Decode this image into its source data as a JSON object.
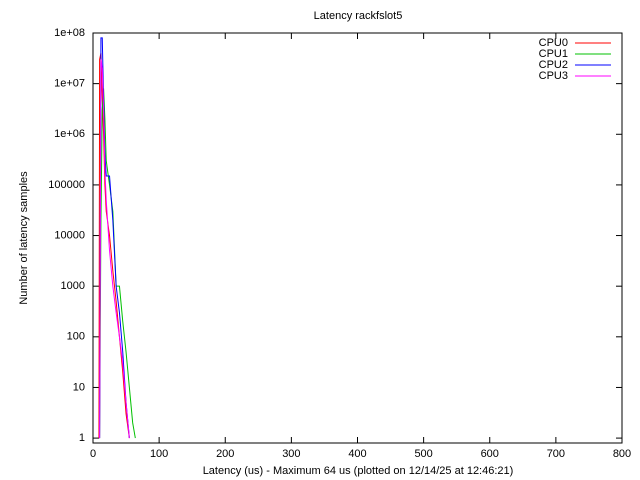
{
  "chart_data": {
    "type": "line",
    "title": "Latency rackfslot5",
    "x_label": "Latency (us) - Maximum 64 us (plotted on 12/14/25 at 12:46:21)",
    "y_label": "Number of latency samples",
    "x": [
      9,
      10,
      12,
      14,
      16,
      18,
      20,
      25,
      30,
      35,
      40,
      45,
      50,
      55,
      60,
      64
    ],
    "series": [
      {
        "name": "CPU0",
        "color": "#ff0000",
        "values": [
          1,
          30000000,
          40000000,
          5000000,
          1000000,
          100000,
          30000,
          10000,
          2000,
          500,
          100,
          20,
          3,
          1,
          null,
          null
        ]
      },
      {
        "name": "CPU1",
        "color": "#00c000",
        "values": [
          null,
          1,
          20000,
          3000000,
          8000000,
          2000000,
          300000,
          100000,
          30000,
          1000,
          1000,
          200,
          50,
          10,
          2,
          1
        ]
      },
      {
        "name": "CPU2",
        "color": "#0000ff",
        "values": [
          null,
          1,
          80000000,
          80000000,
          5000000,
          400000,
          150000,
          150000,
          20000,
          1000,
          300,
          50,
          5,
          1,
          null,
          null
        ]
      },
      {
        "name": "CPU3",
        "color": "#ff00ff",
        "values": [
          null,
          1,
          30000000,
          20000000,
          3000000,
          200000,
          50000,
          5000,
          1000,
          300,
          100,
          30,
          5,
          1,
          null,
          null
        ]
      }
    ],
    "xlim": [
      0,
      800
    ],
    "xticks": [
      0,
      100,
      200,
      300,
      400,
      500,
      600,
      700,
      800
    ],
    "ylim": [
      0.8,
      100000000
    ],
    "yscale": "log",
    "yticks": [
      1,
      10,
      100,
      1000,
      10000,
      100000,
      {
        "value": 1000000,
        "label": "1e+06"
      },
      {
        "value": 10000000,
        "label": "1e+07"
      },
      {
        "value": 100000000,
        "label": "1e+08"
      }
    ],
    "legend": "top-right"
  }
}
